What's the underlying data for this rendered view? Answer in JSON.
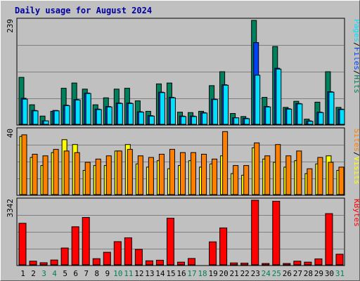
{
  "title": "Daily usage for August 2024",
  "colors": {
    "title": "#0000a0",
    "hits": "#00805c",
    "files": "#0040ff",
    "pages": "#00e0ff",
    "visits": "#ffff00",
    "sites": "#ff8000",
    "kbytes": "#ff0000",
    "panel": "#c0c0c0",
    "weekend_label": "#00805c",
    "weekday_label": "#000000"
  },
  "chart_data": [
    {
      "type": "bar",
      "panel": "top",
      "max_label": "239",
      "ylim": [
        0,
        239
      ],
      "legend": [
        {
          "label": "Pages",
          "color": "#00e0ff"
        },
        {
          "label": "/",
          "color": "#000000"
        },
        {
          "label": "Files",
          "color": "#0040ff"
        },
        {
          "label": "/",
          "color": "#000000"
        },
        {
          "label": "Hits",
          "color": "#00805c"
        }
      ],
      "categories": [
        "1",
        "2",
        "3",
        "4",
        "5",
        "6",
        "7",
        "8",
        "9",
        "10",
        "11",
        "12",
        "13",
        "14",
        "15",
        "16",
        "17",
        "18",
        "19",
        "20",
        "21",
        "22",
        "23",
        "24",
        "25",
        "26",
        "27",
        "28",
        "29",
        "30",
        "31"
      ],
      "series": [
        {
          "name": "Hits",
          "values": [
            108,
            45,
            19,
            30,
            83,
            95,
            81,
            45,
            61,
            81,
            83,
            54,
            30,
            93,
            95,
            28,
            27,
            30,
            89,
            121,
            25,
            18,
            239,
            62,
            179,
            39,
            53,
            12,
            51,
            121,
            39
          ]
        },
        {
          "name": "Files",
          "values": [
            60,
            32,
            8,
            32,
            44,
            57,
            72,
            35,
            41,
            49,
            49,
            29,
            20,
            74,
            62,
            19,
            19,
            27,
            58,
            91,
            15,
            14,
            188,
            41,
            129,
            36,
            48,
            8,
            28,
            75,
            35
          ]
        },
        {
          "name": "Pages",
          "values": [
            58,
            31,
            8,
            31,
            43,
            56,
            71,
            34,
            40,
            48,
            48,
            28,
            19,
            73,
            61,
            18,
            18,
            26,
            57,
            90,
            15,
            13,
            113,
            40,
            127,
            35,
            47,
            7,
            27,
            74,
            34
          ]
        }
      ]
    },
    {
      "type": "bar",
      "panel": "middle",
      "max_label": "40",
      "ylim": [
        0,
        40
      ],
      "legend": [
        {
          "label": "Sites",
          "color": "#ff8000"
        },
        {
          "label": "/",
          "color": "#000000"
        },
        {
          "label": "Visits",
          "color": "#ffff00"
        }
      ],
      "categories": [
        "1",
        "2",
        "3",
        "4",
        "5",
        "6",
        "7",
        "8",
        "9",
        "10",
        "11",
        "12",
        "13",
        "14",
        "15",
        "16",
        "17",
        "18",
        "19",
        "20",
        "21",
        "22",
        "23",
        "24",
        "25",
        "26",
        "27",
        "28",
        "29",
        "30",
        "31"
      ],
      "series": [
        {
          "name": "Visits",
          "values": [
            36,
            23,
            18,
            26,
            34,
            31,
            15,
            18,
            18,
            27,
            31,
            19,
            17,
            21,
            16,
            18,
            21,
            17,
            19,
            24,
            13,
            12,
            29,
            22,
            20,
            17,
            21,
            13,
            19,
            24,
            15
          ]
        },
        {
          "name": "Sites",
          "values": [
            37,
            25,
            24,
            28,
            27,
            26,
            20,
            22,
            24,
            27,
            28,
            24,
            23,
            25,
            28,
            26,
            26,
            25,
            22,
            39,
            18,
            18,
            32,
            24,
            31,
            24,
            27,
            16,
            23,
            20,
            17
          ]
        }
      ]
    },
    {
      "type": "bar",
      "panel": "bottom",
      "max_label": "3342",
      "ylim": [
        0,
        3342
      ],
      "legend": [
        {
          "label": "KBytes",
          "color": "#ff0000"
        }
      ],
      "categories": [
        "1",
        "2",
        "3",
        "4",
        "5",
        "6",
        "7",
        "8",
        "9",
        "10",
        "11",
        "12",
        "13",
        "14",
        "15",
        "16",
        "17",
        "18",
        "19",
        "20",
        "21",
        "22",
        "23",
        "24",
        "25",
        "26",
        "27",
        "28",
        "29",
        "30",
        "31"
      ],
      "series": [
        {
          "name": "KBytes",
          "values": [
            2150,
            190,
            110,
            250,
            870,
            1970,
            2450,
            320,
            650,
            1200,
            1400,
            800,
            210,
            240,
            2410,
            140,
            330,
            0,
            1190,
            1910,
            100,
            90,
            3342,
            70,
            3290,
            70,
            190,
            140,
            310,
            2650,
            550
          ]
        }
      ]
    }
  ],
  "weekend_days": [
    3,
    4,
    10,
    11,
    17,
    18,
    24,
    25,
    31
  ]
}
